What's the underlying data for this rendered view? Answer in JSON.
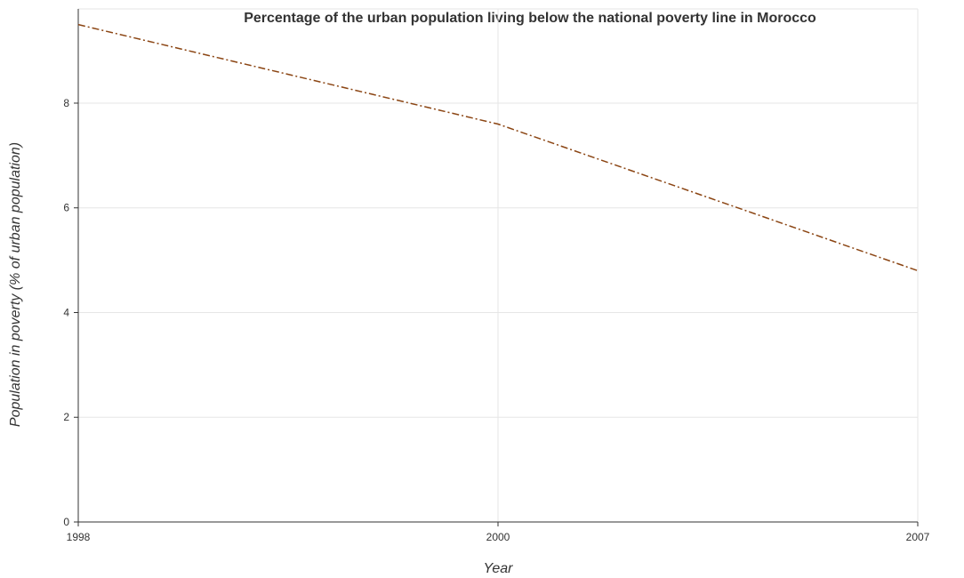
{
  "chart_data": {
    "type": "line",
    "title": "Percentage of the urban population living below the national poverty line in Morocco",
    "xlabel": "Year",
    "ylabel": "Population in poverty (% of urban population)",
    "x": [
      "1998",
      "2000",
      "2007"
    ],
    "series": [
      {
        "values": [
          9.5,
          7.6,
          4.8
        ],
        "color": "#8B4513"
      }
    ],
    "yticks": [
      "0",
      "2",
      "4",
      "6",
      "8"
    ],
    "ylim": [
      0,
      9.8
    ],
    "grid": true
  }
}
